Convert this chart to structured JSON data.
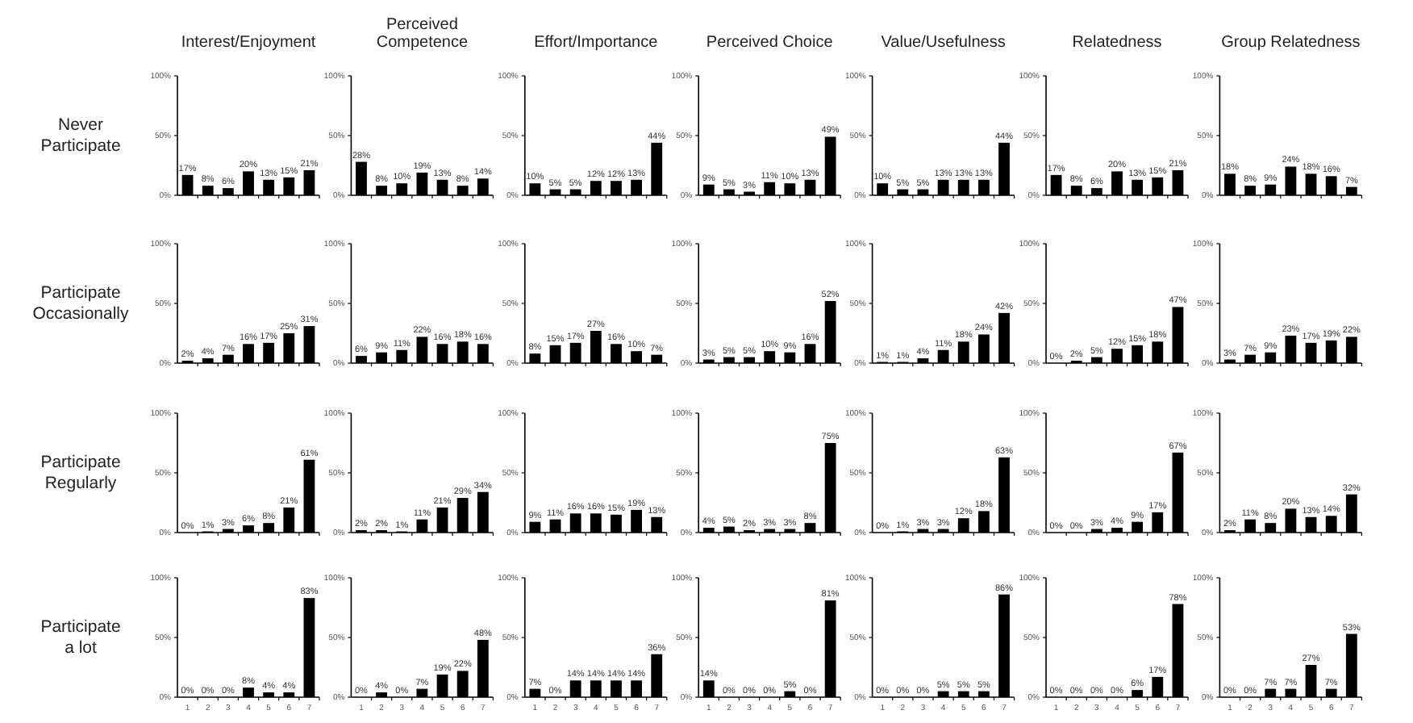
{
  "chart_data": [
    {
      "type": "bar",
      "title": "Interest/Enjoyment",
      "ylabel": "Never Participate",
      "categories": [
        null,
        null,
        null,
        null,
        null,
        null,
        null
      ],
      "values": [
        17,
        8,
        6,
        20,
        13,
        15,
        21
      ],
      "value_labels": [
        "17%",
        "8%",
        "6%",
        "20%",
        "13%",
        "15%",
        "21%"
      ],
      "color": "#000000",
      "ylim": [
        0,
        100
      ],
      "yticks": [
        {
          "value": 0,
          "label": "0%"
        },
        {
          "value": 50,
          "label": "50%"
        },
        {
          "value": 100,
          "label": "100%"
        }
      ]
    },
    {
      "type": "bar",
      "title": "Perceived Competence",
      "categories": [
        null,
        null,
        null,
        null,
        null,
        null,
        null
      ],
      "values": [
        28,
        8,
        10,
        19,
        13,
        8,
        14
      ],
      "value_labels": [
        "28%",
        "8%",
        "10%",
        "19%",
        "13%",
        "8%",
        "14%"
      ],
      "color": "#000000",
      "ylim": [
        0,
        100
      ],
      "yticks": [
        {
          "value": 0,
          "label": "0%"
        },
        {
          "value": 50,
          "label": "50%"
        },
        {
          "value": 100,
          "label": "100%"
        }
      ]
    },
    {
      "type": "bar",
      "title": "Effort/Importance",
      "categories": [
        null,
        null,
        null,
        null,
        null,
        null,
        null
      ],
      "values": [
        10,
        5,
        5,
        12,
        12,
        13,
        44
      ],
      "value_labels": [
        "10%",
        "5%",
        "5%",
        "12%",
        "12%",
        "13%",
        "44%"
      ],
      "color": "#000000",
      "ylim": [
        0,
        100
      ],
      "yticks": [
        {
          "value": 0,
          "label": "0%"
        },
        {
          "value": 50,
          "label": "50%"
        },
        {
          "value": 100,
          "label": "100%"
        }
      ]
    },
    {
      "type": "bar",
      "title": "Perceived Choice",
      "categories": [
        null,
        null,
        null,
        null,
        null,
        null,
        null
      ],
      "values": [
        9,
        5,
        3,
        11,
        10,
        13,
        49
      ],
      "value_labels": [
        "9%",
        "5%",
        "3%",
        "11%",
        "10%",
        "13%",
        "49%"
      ],
      "color": "#000000",
      "ylim": [
        0,
        100
      ],
      "yticks": [
        {
          "value": 0,
          "label": "0%"
        },
        {
          "value": 50,
          "label": "50%"
        },
        {
          "value": 100,
          "label": "100%"
        }
      ]
    },
    {
      "type": "bar",
      "title": "Value/Usefulness",
      "categories": [
        null,
        null,
        null,
        null,
        null,
        null,
        null
      ],
      "values": [
        10,
        5,
        5,
        13,
        13,
        13,
        44
      ],
      "value_labels": [
        "10%",
        "5%",
        "5%",
        "13%",
        "13%",
        "13%",
        "44%"
      ],
      "color": "#000000",
      "ylim": [
        0,
        100
      ],
      "yticks": [
        {
          "value": 0,
          "label": "0%"
        },
        {
          "value": 50,
          "label": "50%"
        },
        {
          "value": 100,
          "label": "100%"
        }
      ]
    },
    {
      "type": "bar",
      "title": "Relatedness",
      "categories": [
        null,
        null,
        null,
        null,
        null,
        null,
        null
      ],
      "values": [
        17,
        8,
        6,
        20,
        13,
        15,
        21
      ],
      "value_labels": [
        "17%",
        "8%",
        "6%",
        "20%",
        "13%",
        "15%",
        "21%"
      ],
      "color": "#000000",
      "ylim": [
        0,
        100
      ],
      "yticks": [
        {
          "value": 0,
          "label": "0%"
        },
        {
          "value": 50,
          "label": "50%"
        },
        {
          "value": 100,
          "label": "100%"
        }
      ]
    },
    {
      "type": "bar",
      "title": "Group Relatedness",
      "categories": [
        null,
        null,
        null,
        null,
        null,
        null,
        null
      ],
      "values": [
        18,
        8,
        9,
        24,
        18,
        16,
        7
      ],
      "value_labels": [
        "18%",
        "8%",
        "9%",
        "24%",
        "18%",
        "16%",
        "7%"
      ],
      "color": "#000000",
      "ylim": [
        0,
        100
      ],
      "yticks": [
        {
          "value": 0,
          "label": "0%"
        },
        {
          "value": 50,
          "label": "50%"
        },
        {
          "value": 100,
          "label": "100%"
        }
      ]
    },
    {
      "type": "bar",
      "ylabel": "Participate Occasionally",
      "categories": [
        null,
        null,
        null,
        null,
        null,
        null,
        null
      ],
      "values": [
        2,
        4,
        7,
        16,
        17,
        25,
        31
      ],
      "value_labels": [
        "2%",
        "4%",
        "7%",
        "16%",
        "17%",
        "25%",
        "31%"
      ],
      "color": "#000000",
      "ylim": [
        0,
        100
      ],
      "yticks": [
        {
          "value": 0,
          "label": "0%"
        },
        {
          "value": 50,
          "label": "50%"
        },
        {
          "value": 100,
          "label": "100%"
        }
      ]
    },
    {
      "type": "bar",
      "categories": [
        null,
        null,
        null,
        null,
        null,
        null,
        null
      ],
      "values": [
        6,
        9,
        11,
        22,
        16,
        18,
        16
      ],
      "value_labels": [
        "6%",
        "9%",
        "11%",
        "22%",
        "16%",
        "18%",
        "16%"
      ],
      "color": "#000000",
      "ylim": [
        0,
        100
      ],
      "yticks": [
        {
          "value": 0,
          "label": "0%"
        },
        {
          "value": 50,
          "label": "50%"
        },
        {
          "value": 100,
          "label": "100%"
        }
      ]
    },
    {
      "type": "bar",
      "categories": [
        null,
        null,
        null,
        null,
        null,
        null,
        null
      ],
      "values": [
        8,
        15,
        17,
        27,
        16,
        10,
        7
      ],
      "value_labels": [
        "8%",
        "15%",
        "17%",
        "27%",
        "16%",
        "10%",
        "7%"
      ],
      "color": "#000000",
      "ylim": [
        0,
        100
      ],
      "yticks": [
        {
          "value": 0,
          "label": "0%"
        },
        {
          "value": 50,
          "label": "50%"
        },
        {
          "value": 100,
          "label": "100%"
        }
      ]
    },
    {
      "type": "bar",
      "categories": [
        null,
        null,
        null,
        null,
        null,
        null,
        null
      ],
      "values": [
        3,
        5,
        5,
        10,
        9,
        16,
        52
      ],
      "value_labels": [
        "3%",
        "5%",
        "5%",
        "10%",
        "9%",
        "16%",
        "52%"
      ],
      "color": "#000000",
      "ylim": [
        0,
        100
      ],
      "yticks": [
        {
          "value": 0,
          "label": "0%"
        },
        {
          "value": 50,
          "label": "50%"
        },
        {
          "value": 100,
          "label": "100%"
        }
      ]
    },
    {
      "type": "bar",
      "categories": [
        null,
        null,
        null,
        null,
        null,
        null,
        null
      ],
      "values": [
        1,
        1,
        4,
        11,
        18,
        24,
        42
      ],
      "value_labels": [
        "1%",
        "1%",
        "4%",
        "11%",
        "18%",
        "24%",
        "42%"
      ],
      "color": "#000000",
      "ylim": [
        0,
        100
      ],
      "yticks": [
        {
          "value": 0,
          "label": "0%"
        },
        {
          "value": 50,
          "label": "50%"
        },
        {
          "value": 100,
          "label": "100%"
        }
      ]
    },
    {
      "type": "bar",
      "categories": [
        null,
        null,
        null,
        null,
        null,
        null,
        null
      ],
      "values": [
        0,
        2,
        5,
        12,
        15,
        18,
        47
      ],
      "value_labels": [
        "0%",
        "2%",
        "5%",
        "12%",
        "15%",
        "18%",
        "47%"
      ],
      "color": "#000000",
      "ylim": [
        0,
        100
      ],
      "yticks": [
        {
          "value": 0,
          "label": "0%"
        },
        {
          "value": 50,
          "label": "50%"
        },
        {
          "value": 100,
          "label": "100%"
        }
      ]
    },
    {
      "type": "bar",
      "categories": [
        null,
        null,
        null,
        null,
        null,
        null,
        null
      ],
      "values": [
        3,
        7,
        9,
        23,
        17,
        19,
        22
      ],
      "value_labels": [
        "3%",
        "7%",
        "9%",
        "23%",
        "17%",
        "19%",
        "22%"
      ],
      "color": "#000000",
      "ylim": [
        0,
        100
      ],
      "yticks": [
        {
          "value": 0,
          "label": "0%"
        },
        {
          "value": 50,
          "label": "50%"
        },
        {
          "value": 100,
          "label": "100%"
        }
      ]
    },
    {
      "type": "bar",
      "ylabel": "Participate Regularly",
      "categories": [
        null,
        null,
        null,
        null,
        null,
        null,
        null
      ],
      "values": [
        0,
        1,
        3,
        6,
        8,
        21,
        61
      ],
      "value_labels": [
        "0%",
        "1%",
        "3%",
        "6%",
        "8%",
        "21%",
        "61%"
      ],
      "color": "#000000",
      "ylim": [
        0,
        100
      ],
      "yticks": [
        {
          "value": 0,
          "label": "0%"
        },
        {
          "value": 50,
          "label": "50%"
        },
        {
          "value": 100,
          "label": "100%"
        }
      ]
    },
    {
      "type": "bar",
      "categories": [
        null,
        null,
        null,
        null,
        null,
        null,
        null
      ],
      "values": [
        2,
        2,
        1,
        11,
        21,
        29,
        34
      ],
      "value_labels": [
        "2%",
        "2%",
        "1%",
        "11%",
        "21%",
        "29%",
        "34%"
      ],
      "color": "#000000",
      "ylim": [
        0,
        100
      ],
      "yticks": [
        {
          "value": 0,
          "label": "0%"
        },
        {
          "value": 50,
          "label": "50%"
        },
        {
          "value": 100,
          "label": "100%"
        }
      ]
    },
    {
      "type": "bar",
      "categories": [
        null,
        null,
        null,
        null,
        null,
        null,
        null
      ],
      "values": [
        9,
        11,
        16,
        16,
        15,
        19,
        13
      ],
      "value_labels": [
        "9%",
        "11%",
        "16%",
        "16%",
        "15%",
        "19%",
        "13%"
      ],
      "color": "#000000",
      "ylim": [
        0,
        100
      ],
      "yticks": [
        {
          "value": 0,
          "label": "0%"
        },
        {
          "value": 50,
          "label": "50%"
        },
        {
          "value": 100,
          "label": "100%"
        }
      ]
    },
    {
      "type": "bar",
      "categories": [
        null,
        null,
        null,
        null,
        null,
        null,
        null
      ],
      "values": [
        4,
        5,
        2,
        3,
        3,
        8,
        75
      ],
      "value_labels": [
        "4%",
        "5%",
        "2%",
        "3%",
        "3%",
        "8%",
        "75%"
      ],
      "color": "#000000",
      "ylim": [
        0,
        100
      ],
      "yticks": [
        {
          "value": 0,
          "label": "0%"
        },
        {
          "value": 50,
          "label": "50%"
        },
        {
          "value": 100,
          "label": "100%"
        }
      ]
    },
    {
      "type": "bar",
      "categories": [
        null,
        null,
        null,
        null,
        null,
        null,
        null
      ],
      "values": [
        0,
        1,
        3,
        3,
        12,
        18,
        63
      ],
      "value_labels": [
        "0%",
        "1%",
        "3%",
        "3%",
        "12%",
        "18%",
        "63%"
      ],
      "color": "#000000",
      "ylim": [
        0,
        100
      ],
      "yticks": [
        {
          "value": 0,
          "label": "0%"
        },
        {
          "value": 50,
          "label": "50%"
        },
        {
          "value": 100,
          "label": "100%"
        }
      ]
    },
    {
      "type": "bar",
      "categories": [
        null,
        null,
        null,
        null,
        null,
        null,
        null
      ],
      "values": [
        0,
        0,
        3,
        4,
        9,
        17,
        67
      ],
      "value_labels": [
        "0%",
        "0%",
        "3%",
        "4%",
        "9%",
        "17%",
        "67%"
      ],
      "color": "#000000",
      "ylim": [
        0,
        100
      ],
      "yticks": [
        {
          "value": 0,
          "label": "0%"
        },
        {
          "value": 50,
          "label": "50%"
        },
        {
          "value": 100,
          "label": "100%"
        }
      ]
    },
    {
      "type": "bar",
      "categories": [
        null,
        null,
        null,
        null,
        null,
        null,
        null
      ],
      "values": [
        2,
        11,
        8,
        20,
        13,
        14,
        32
      ],
      "value_labels": [
        "2%",
        "11%",
        "8%",
        "20%",
        "13%",
        "14%",
        "32%"
      ],
      "color": "#000000",
      "ylim": [
        0,
        100
      ],
      "yticks": [
        {
          "value": 0,
          "label": "0%"
        },
        {
          "value": 50,
          "label": "50%"
        },
        {
          "value": 100,
          "label": "100%"
        }
      ]
    },
    {
      "type": "bar",
      "ylabel": "Participate a lot",
      "categories": [
        "1",
        "2",
        "3",
        "4",
        "5",
        "6",
        "7"
      ],
      "values": [
        0,
        0,
        0,
        8,
        4,
        4,
        83
      ],
      "value_labels": [
        "0%",
        "0%",
        "0%",
        "8%",
        "4%",
        "4%",
        "83%"
      ],
      "color": "#000000",
      "ylim": [
        0,
        100
      ],
      "yticks": [
        {
          "value": 0,
          "label": "0%"
        },
        {
          "value": 50,
          "label": "50%"
        },
        {
          "value": 100,
          "label": "100%"
        }
      ]
    },
    {
      "type": "bar",
      "categories": [
        "1",
        "2",
        "3",
        "4",
        "5",
        "6",
        "7"
      ],
      "values": [
        0,
        4,
        0,
        7,
        19,
        22,
        48
      ],
      "value_labels": [
        "0%",
        "4%",
        "0%",
        "7%",
        "19%",
        "22%",
        "48%"
      ],
      "color": "#000000",
      "ylim": [
        0,
        100
      ],
      "yticks": [
        {
          "value": 0,
          "label": "0%"
        },
        {
          "value": 50,
          "label": "50%"
        },
        {
          "value": 100,
          "label": "100%"
        }
      ]
    },
    {
      "type": "bar",
      "categories": [
        "1",
        "2",
        "3",
        "4",
        "5",
        "6",
        "7"
      ],
      "values": [
        7,
        0,
        14,
        14,
        14,
        14,
        36
      ],
      "value_labels": [
        "7%",
        "0%",
        "14%",
        "14%",
        "14%",
        "14%",
        "36%"
      ],
      "color": "#000000",
      "ylim": [
        0,
        100
      ],
      "yticks": [
        {
          "value": 0,
          "label": "0%"
        },
        {
          "value": 50,
          "label": "50%"
        },
        {
          "value": 100,
          "label": "100%"
        }
      ]
    },
    {
      "type": "bar",
      "categories": [
        "1",
        "2",
        "3",
        "4",
        "5",
        "6",
        "7"
      ],
      "values": [
        14,
        0,
        0,
        0,
        5,
        0,
        81
      ],
      "value_labels": [
        "14%",
        "0%",
        "0%",
        "0%",
        "5%",
        "0%",
        "81%"
      ],
      "color": "#000000",
      "ylim": [
        0,
        100
      ],
      "yticks": [
        {
          "value": 0,
          "label": "0%"
        },
        {
          "value": 50,
          "label": "50%"
        },
        {
          "value": 100,
          "label": "100%"
        }
      ]
    },
    {
      "type": "bar",
      "categories": [
        "1",
        "2",
        "3",
        "4",
        "5",
        "6",
        "7"
      ],
      "values": [
        0,
        0,
        0,
        5,
        5,
        5,
        86
      ],
      "value_labels": [
        "0%",
        "0%",
        "0%",
        "5%",
        "5%",
        "5%",
        "86%"
      ],
      "color": "#000000",
      "ylim": [
        0,
        100
      ],
      "yticks": [
        {
          "value": 0,
          "label": "0%"
        },
        {
          "value": 50,
          "label": "50%"
        },
        {
          "value": 100,
          "label": "100%"
        }
      ]
    },
    {
      "type": "bar",
      "categories": [
        "1",
        "2",
        "3",
        "4",
        "5",
        "6",
        "7"
      ],
      "values": [
        0,
        0,
        0,
        0,
        6,
        17,
        78
      ],
      "value_labels": [
        "0%",
        "0%",
        "0%",
        "0%",
        "6%",
        "17%",
        "78%"
      ],
      "color": "#000000",
      "ylim": [
        0,
        100
      ],
      "yticks": [
        {
          "value": 0,
          "label": "0%"
        },
        {
          "value": 50,
          "label": "50%"
        },
        {
          "value": 100,
          "label": "100%"
        }
      ]
    },
    {
      "type": "bar",
      "categories": [
        "1",
        "2",
        "3",
        "4",
        "5",
        "6",
        "7"
      ],
      "values": [
        0,
        0,
        7,
        7,
        27,
        7,
        53
      ],
      "value_labels": [
        "0%",
        "0%",
        "7%",
        "7%",
        "27%",
        "7%",
        "53%"
      ],
      "color": "#000000",
      "ylim": [
        0,
        100
      ],
      "yticks": [
        {
          "value": 0,
          "label": "0%"
        },
        {
          "value": 50,
          "label": "50%"
        },
        {
          "value": 100,
          "label": "100%"
        }
      ]
    }
  ]
}
